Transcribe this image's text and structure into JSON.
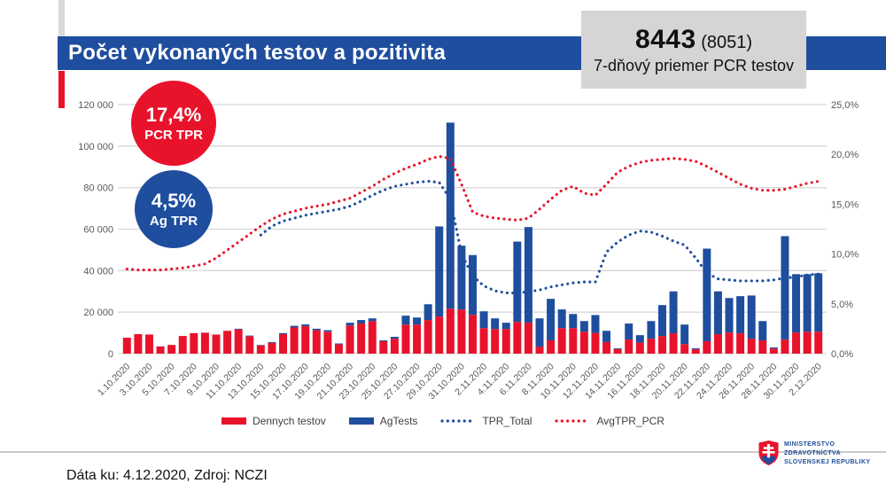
{
  "header": {
    "title": "Počet vykonaných testov a pozitivita",
    "bar_color": "#1F4E9E"
  },
  "stat_box": {
    "value": "8443",
    "secondary": "(8051)",
    "label": "7-dňový priemer PCR testov"
  },
  "badges": [
    {
      "value": "17,4%",
      "label": "PCR TPR",
      "color": "#E8132B"
    },
    {
      "value": "4,5%",
      "label": "Ag TPR",
      "color": "#1F4E9E"
    }
  ],
  "chart_data": {
    "type": "bar",
    "subtype": "stacked bars with two dotted percentage lines (combo chart)",
    "grid": true,
    "legend_position": "bottom",
    "left_axis": {
      "min": 0,
      "max": 120000,
      "step": 20000,
      "labels": [
        "0",
        "20 000",
        "40 000",
        "60 000",
        "80 000",
        "100 000",
        "120 000"
      ]
    },
    "right_axis": {
      "min": 0,
      "max": 25,
      "step": 5,
      "labels": [
        "0,0%",
        "5,0%",
        "10,0%",
        "15,0%",
        "20,0%",
        "25,0%"
      ]
    },
    "x_dates": [
      "1.10.2020",
      "2.10.2020",
      "3.10.2020",
      "4.10.2020",
      "5.10.2020",
      "6.10.2020",
      "7.10.2020",
      "8.10.2020",
      "9.10.2020",
      "10.10.2020",
      "11.10.2020",
      "12.10.2020",
      "13.10.2020",
      "14.10.2020",
      "15.10.2020",
      "16.10.2020",
      "17.10.2020",
      "18.10.2020",
      "19.10.2020",
      "20.10.2020",
      "21.10.2020",
      "22.10.2020",
      "23.10.2020",
      "24.10.2020",
      "25.10.2020",
      "26.10.2020",
      "27.10.2020",
      "28.10.2020",
      "29.10.2020",
      "30.10.2020",
      "31.10.2020",
      "1.11.2020",
      "2.11.2020",
      "3.11.2020",
      "4.11.2020",
      "5.11.2020",
      "6.11.2020",
      "7.11.2020",
      "8.11.2020",
      "9.11.2020",
      "10.11.2020",
      "11.11.2020",
      "12.11.2020",
      "13.11.2020",
      "14.11.2020",
      "15.11.2020",
      "16.11.2020",
      "17.11.2020",
      "18.11.2020",
      "19.11.2020",
      "20.11.2020",
      "21.11.2020",
      "22.11.2020",
      "23.11.2020",
      "24.11.2020",
      "25.11.2020",
      "26.11.2020",
      "27.11.2020",
      "28.11.2020",
      "29.11.2020",
      "30.11.2020",
      "1.12.2020",
      "2.12.2020"
    ],
    "x_tick_labels": [
      "1.10.2020",
      "3.10.2020",
      "5.10.2020",
      "7.10.2020",
      "9.10.2020",
      "11.10.2020",
      "13.10.2020",
      "15.10.2020",
      "17.10.2020",
      "19.10.2020",
      "21.10.2020",
      "23.10.2020",
      "25.10.2020",
      "27.10.2020",
      "29.10.2020",
      "31.10.2020",
      "2.11.2020",
      "4.11.2020",
      "6.11.2020",
      "8.11.2020",
      "10.11.2020",
      "12.11.2020",
      "14.11.2020",
      "16.11.2020",
      "18.11.2020",
      "20.11.2020",
      "22.11.2020",
      "24.11.2020",
      "26.11.2020",
      "28.11.2020",
      "30.11.2020",
      "2.12.2020"
    ],
    "series": [
      {
        "name": "Dennych testov",
        "type": "bar",
        "axis": "left",
        "color": "#E8132B",
        "values": [
          7700,
          9400,
          9200,
          3500,
          4200,
          8500,
          9900,
          10100,
          9200,
          11000,
          11700,
          8400,
          4000,
          5200,
          9400,
          12600,
          13300,
          11300,
          10600,
          4500,
          13600,
          14500,
          15700,
          6000,
          7200,
          14000,
          14000,
          16200,
          17900,
          21700,
          21300,
          18700,
          12300,
          11900,
          11900,
          15300,
          14900,
          3400,
          6400,
          12300,
          12300,
          10600,
          10000,
          5600,
          2200,
          6800,
          5400,
          7200,
          8500,
          9800,
          4600,
          2100,
          6000,
          9400,
          10200,
          9800,
          7200,
          6400,
          2500,
          6800,
          10200,
          10600,
          10600
        ]
      },
      {
        "name": "AgTests",
        "type": "bar",
        "axis": "left",
        "color": "#1F4E9E",
        "values": [
          0,
          0,
          0,
          0,
          0,
          0,
          0,
          0,
          0,
          0,
          300,
          300,
          200,
          400,
          500,
          800,
          800,
          700,
          700,
          400,
          1300,
          1700,
          1300,
          400,
          900,
          4300,
          3400,
          7600,
          43400,
          89600,
          30700,
          28800,
          8100,
          5100,
          3000,
          38700,
          46100,
          13600,
          20000,
          9000,
          6800,
          5100,
          8600,
          5400,
          400,
          7700,
          3500,
          8500,
          14900,
          20200,
          9400,
          500,
          44600,
          20600,
          16600,
          17900,
          20800,
          9300,
          500,
          49800,
          28100,
          27700,
          28100
        ]
      },
      {
        "name": "TPR_Total",
        "type": "dotted-line",
        "axis": "right",
        "color": "#1F4E9E",
        "values": [
          null,
          null,
          null,
          null,
          null,
          null,
          null,
          null,
          null,
          null,
          null,
          null,
          11.9,
          12.8,
          13.3,
          13.6,
          13.9,
          14.1,
          14.3,
          14.5,
          14.8,
          15.3,
          15.9,
          16.4,
          16.8,
          17.0,
          17.2,
          17.3,
          17.2,
          15.5,
          10.0,
          7.8,
          6.8,
          6.3,
          6.1,
          6.1,
          6.2,
          6.4,
          6.7,
          6.9,
          7.1,
          7.2,
          7.2,
          10.2,
          11.2,
          11.9,
          12.3,
          12.2,
          11.8,
          11.3,
          10.9,
          9.6,
          8.1,
          7.5,
          7.4,
          7.3,
          7.3,
          7.3,
          7.4,
          7.6,
          7.7,
          7.9,
          8.0
        ]
      },
      {
        "name": "AvgTPR_PCR",
        "type": "dotted-line",
        "axis": "right",
        "color": "#E8132B",
        "values": [
          8.5,
          8.4,
          8.4,
          8.4,
          8.5,
          8.6,
          8.8,
          9.0,
          9.6,
          10.4,
          11.2,
          12.0,
          12.8,
          13.5,
          14.0,
          14.3,
          14.6,
          14.8,
          15.0,
          15.3,
          15.6,
          16.2,
          16.8,
          17.5,
          18.1,
          18.6,
          19.0,
          19.5,
          19.8,
          19.6,
          17.0,
          14.2,
          13.8,
          13.6,
          13.5,
          13.4,
          13.6,
          14.5,
          15.5,
          16.4,
          16.8,
          16.1,
          15.9,
          17.0,
          18.2,
          18.8,
          19.2,
          19.4,
          19.5,
          19.6,
          19.5,
          19.3,
          18.8,
          18.2,
          17.6,
          17.0,
          16.6,
          16.4,
          16.4,
          16.5,
          16.8,
          17.1,
          17.3
        ]
      }
    ]
  },
  "footer": {
    "text": "Dáta ku: 4.12.2020, Zdroj: NCZI"
  },
  "logo": {
    "lines": [
      "MINISTERSTVO",
      "ZDRAVOTNÍCTVA",
      "SLOVENSKEJ REPUBLIKY"
    ]
  }
}
